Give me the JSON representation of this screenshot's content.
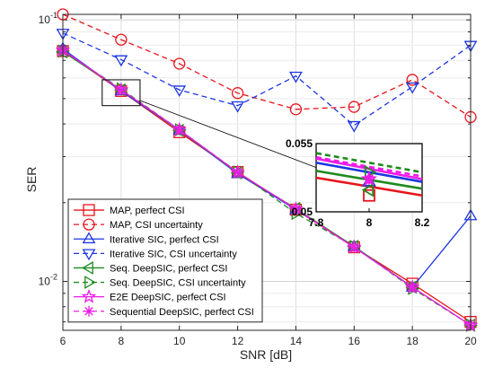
{
  "chart_data": {
    "type": "line",
    "xlabel": "SNR [dB]",
    "ylabel": "SER",
    "x_scale": "linear",
    "y_scale": "log",
    "xlim": [
      6,
      20
    ],
    "ylim": [
      0.0065,
      0.105
    ],
    "xticks": [
      6,
      8,
      10,
      12,
      14,
      16,
      18,
      20
    ],
    "xtick_labels": [
      "6",
      "8",
      "10",
      "12",
      "14",
      "16",
      "18",
      "20"
    ],
    "ytick_labels": [
      {
        "value": 0.1,
        "base": "10",
        "exp": "-1"
      },
      {
        "value": 0.01,
        "base": "10",
        "exp": "-2"
      }
    ],
    "grid": true,
    "legend_position": "bottom-left",
    "x": [
      6,
      8,
      10,
      12,
      14,
      16,
      18,
      20
    ],
    "series": [
      {
        "name": "MAP, perfect CSI",
        "color": "#e8141c",
        "dash": "solid",
        "marker": "square",
        "values": [
          0.076,
          0.0535,
          0.0372,
          0.0262,
          0.0188,
          0.0135,
          0.0098,
          0.007
        ]
      },
      {
        "name": "MAP, CSI uncertainty",
        "color": "#e8141c",
        "dash": "dashed",
        "marker": "circle",
        "values": [
          0.105,
          0.084,
          0.068,
          0.0525,
          0.0455,
          0.0465,
          0.059,
          0.0425
        ]
      },
      {
        "name": "Iterative SIC, perfect CSI",
        "color": "#1c36e4",
        "dash": "solid",
        "marker": "triangle-up",
        "values": [
          0.0775,
          0.0535,
          0.0378,
          0.0258,
          0.0188,
          0.0136,
          0.0095,
          0.0178
        ]
      },
      {
        "name": "Iterative SIC, CSI uncertainty",
        "color": "#1c36e4",
        "dash": "dashed",
        "marker": "triangle-down",
        "values": [
          0.089,
          0.0705,
          0.054,
          0.047,
          0.061,
          0.0395,
          0.0555,
          0.08
        ]
      },
      {
        "name": "Seq. DeepSIC, perfect CSI",
        "color": "#1e8a1e",
        "dash": "solid",
        "marker": "triangle-left",
        "values": [
          0.0755,
          0.054,
          0.0378,
          0.026,
          0.019,
          0.0136,
          0.0095,
          0.0068
        ]
      },
      {
        "name": "Seq. DeepSIC, CSI uncertainty",
        "color": "#1e8a1e",
        "dash": "dashed",
        "marker": "triangle-right",
        "values": [
          0.076,
          0.0545,
          0.038,
          0.0262,
          0.0182,
          0.0136,
          0.0094,
          0.0068
        ]
      },
      {
        "name": "E2E DeepSIC, perfect CSI",
        "color": "#ee1ae6",
        "dash": "solid",
        "marker": "pentagram",
        "values": [
          0.0765,
          0.054,
          0.038,
          0.0261,
          0.0189,
          0.0135,
          0.0095,
          0.0068
        ]
      },
      {
        "name": "Sequential DeepSIC, perfect CSI",
        "color": "#ee1ae6",
        "dash": "dashed",
        "marker": "asterisk",
        "values": [
          0.0765,
          0.054,
          0.038,
          0.0261,
          0.0189,
          0.0135,
          0.0095,
          0.0068
        ]
      }
    ],
    "inset": {
      "xlim": [
        7.8,
        8.2
      ],
      "ylim": [
        0.05,
        0.055
      ],
      "xtick_labels": [
        "7.8",
        "8",
        "8.2"
      ],
      "ytick_labels": [
        "0.055",
        "0.05"
      ],
      "series_values": [
        [
          0.0525,
          0.0512
        ],
        [
          null,
          null
        ],
        [
          0.0536,
          0.0522
        ],
        [
          null,
          null
        ],
        [
          0.053,
          0.0517
        ],
        [
          0.0543,
          0.0529
        ],
        [
          0.0539,
          0.0524
        ],
        [
          0.054,
          0.0526
        ]
      ],
      "marker_at_x": 8,
      "marker_values": [
        0.0512,
        null,
        0.0522,
        null,
        0.0516,
        0.0529,
        0.0524,
        0.0524
      ]
    }
  }
}
